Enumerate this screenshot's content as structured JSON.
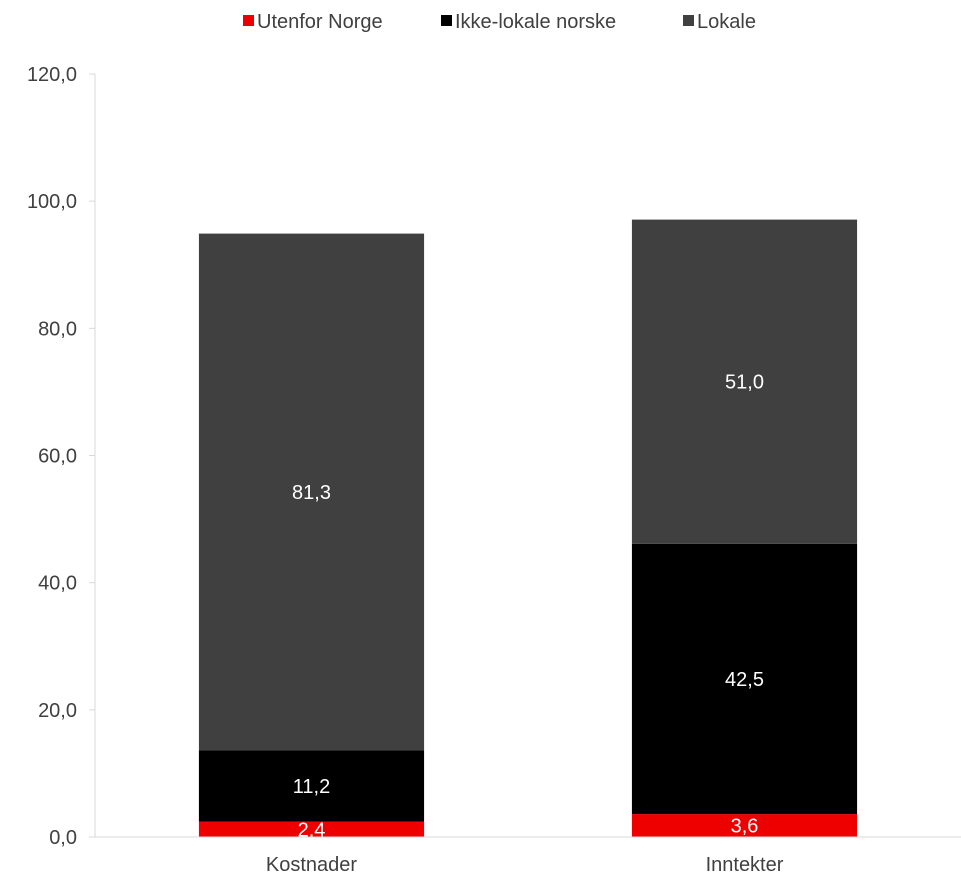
{
  "chart_data": {
    "type": "bar",
    "stacked": true,
    "categories": [
      "Kostnader",
      "Inntekter"
    ],
    "series": [
      {
        "name": "Utenfor Norge",
        "values": [
          2.4,
          3.6
        ],
        "labels": [
          "2,4",
          "3,6"
        ],
        "color": "#ee0000"
      },
      {
        "name": "Ikke-lokale norske",
        "values": [
          11.2,
          42.5
        ],
        "labels": [
          "11,2",
          "42,5"
        ],
        "color": "#000000"
      },
      {
        "name": "Lokale",
        "values": [
          81.3,
          51.0
        ],
        "labels": [
          "81,3",
          "51,0"
        ],
        "color": "#404040"
      }
    ],
    "ylim": [
      0,
      120
    ],
    "yticks": [
      0,
      20,
      40,
      60,
      80,
      100,
      120
    ],
    "ytick_labels": [
      "0,0",
      "20,0",
      "40,0",
      "60,0",
      "80,0",
      "100,0",
      "120,0"
    ],
    "legend_position": "top-center",
    "grid": false
  }
}
